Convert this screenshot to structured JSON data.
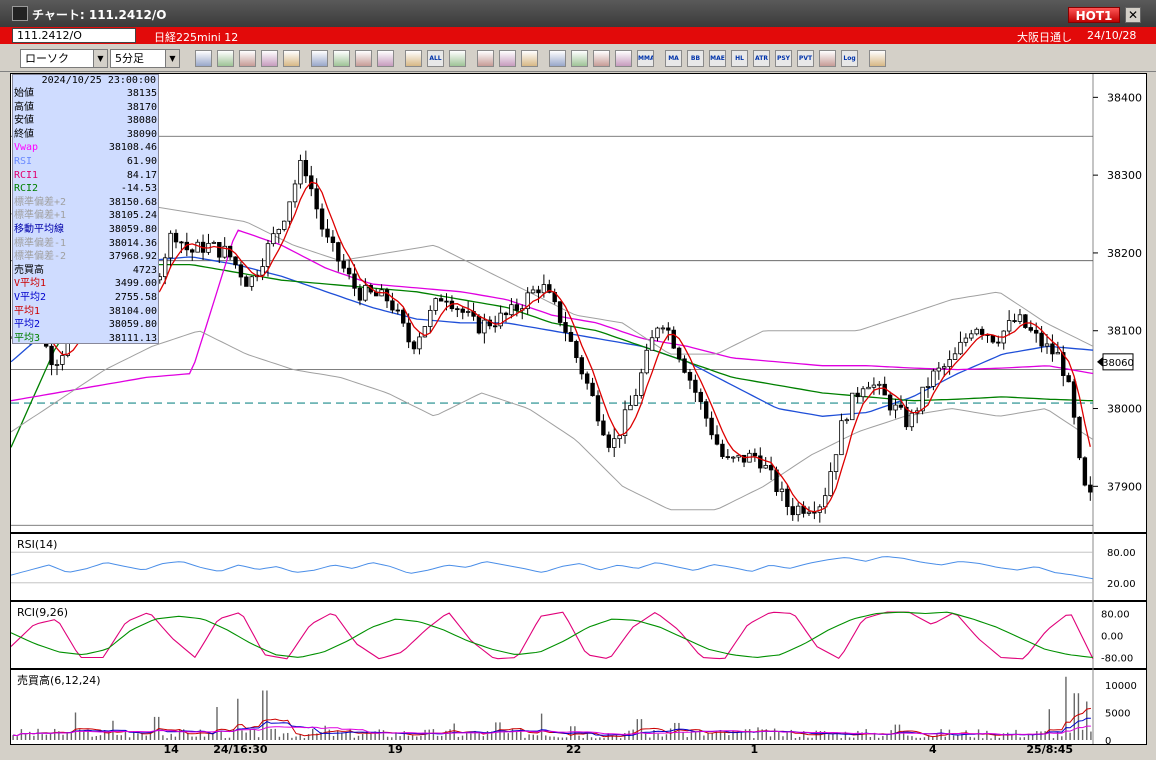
{
  "window": {
    "title": "チャート: 111.2412/O",
    "hot_badge": "HOT1",
    "close_glyph": "✕"
  },
  "infobar": {
    "symbol": "111.2412/O",
    "instrument": "日経225mini 12",
    "session": "大阪日通し",
    "date": "24/10/28"
  },
  "toolbar": {
    "chart_type": "ローソク",
    "interval": "5分足",
    "icons": [
      "zoom-icon",
      "grid-icon",
      "line-tool-icon",
      "trend-tool-icon",
      "cursor-icon",
      "arrow-icon",
      "print-icon",
      "trash-icon",
      "bar-compress-icon",
      "bar-expand-icon",
      "all-icon",
      "settings-icon",
      "pen-icon",
      "color-icon",
      "mouse-icon",
      "search-chart-icon",
      "window-icon",
      "signal-icon",
      "misc-icon",
      "mma-icon",
      "ma-icon",
      "bb-icon",
      "mae-icon",
      "hl-icon",
      "atr-icon",
      "psy-icon",
      "pvt-icon",
      "box-icon",
      "log-icon",
      "export-icon"
    ],
    "icon_labels": {
      "all-icon": "ALL",
      "mma-icon": "MMA",
      "ma-icon": "MA",
      "bb-icon": "BB",
      "mae-icon": "MAE",
      "hl-icon": "HL",
      "atr-icon": "ATR",
      "psy-icon": "PSY",
      "pvt-icon": "PVT",
      "log-icon": "Log"
    }
  },
  "infobox": {
    "datetime": "2024/10/25 23:00:00",
    "rows": [
      {
        "label": "始値",
        "value": "38135",
        "color": "#000000"
      },
      {
        "label": "高値",
        "value": "38170",
        "color": "#000000"
      },
      {
        "label": "安値",
        "value": "38080",
        "color": "#000000"
      },
      {
        "label": "終値",
        "value": "38090",
        "color": "#000000"
      },
      {
        "label": "Vwap",
        "value": "38108.46",
        "color": "#ff00ff"
      },
      {
        "label": "RSI",
        "value": "61.90",
        "color": "#6a8aff"
      },
      {
        "label": "RCI1",
        "value": "84.17",
        "color": "#e00070"
      },
      {
        "label": "RCI2",
        "value": "-14.53",
        "color": "#008000"
      },
      {
        "label": "標準偏差+2",
        "value": "38150.68",
        "color": "#a0a0a0"
      },
      {
        "label": "標準偏差+1",
        "value": "38105.24",
        "color": "#a0a0a0"
      },
      {
        "label": "移動平均線",
        "value": "38059.80",
        "color": "#0000aa"
      },
      {
        "label": "標準偏差-1",
        "value": "38014.36",
        "color": "#a0a0a0"
      },
      {
        "label": "標準偏差-2",
        "value": "37968.92",
        "color": "#a0a0a0"
      },
      {
        "label": "売買高",
        "value": "4723",
        "color": "#000000"
      },
      {
        "label": "V平均1",
        "value": "3499.00",
        "color": "#cc0000"
      },
      {
        "label": "V平均2",
        "value": "2755.58",
        "color": "#0000cc"
      },
      {
        "label": "平均1",
        "value": "38104.00",
        "color": "#cc0000"
      },
      {
        "label": "平均2",
        "value": "38059.80",
        "color": "#0000cc"
      },
      {
        "label": "平均3",
        "value": "38111.13",
        "color": "#008000"
      }
    ]
  },
  "chart_data": [
    {
      "type": "candlestick",
      "panel": "price",
      "y_ticks": [
        37900,
        38000,
        38100,
        38200,
        38300,
        38400
      ],
      "ylim": [
        37840,
        38430
      ],
      "current_price": "38060",
      "horizontal_lines": [
        38350,
        38190,
        38050,
        37850
      ],
      "dashed_line": 38007,
      "anchors": [
        {
          "x": 0.0,
          "p": 38090
        },
        {
          "x": 0.02,
          "p": 38110
        },
        {
          "x": 0.04,
          "p": 38060
        },
        {
          "x": 0.06,
          "p": 38100
        },
        {
          "x": 0.08,
          "p": 38120
        },
        {
          "x": 0.1,
          "p": 38210
        },
        {
          "x": 0.115,
          "p": 38130
        },
        {
          "x": 0.13,
          "p": 38150
        },
        {
          "x": 0.15,
          "p": 38230
        },
        {
          "x": 0.165,
          "p": 38200
        },
        {
          "x": 0.18,
          "p": 38210
        },
        {
          "x": 0.2,
          "p": 38200
        },
        {
          "x": 0.22,
          "p": 38160
        },
        {
          "x": 0.25,
          "p": 38240
        },
        {
          "x": 0.27,
          "p": 38320
        },
        {
          "x": 0.29,
          "p": 38220
        },
        {
          "x": 0.32,
          "p": 38150
        },
        {
          "x": 0.35,
          "p": 38140
        },
        {
          "x": 0.37,
          "p": 38080
        },
        {
          "x": 0.4,
          "p": 38150
        },
        {
          "x": 0.43,
          "p": 38105
        },
        {
          "x": 0.46,
          "p": 38120
        },
        {
          "x": 0.49,
          "p": 38160
        },
        {
          "x": 0.51,
          "p": 38110
        },
        {
          "x": 0.53,
          "p": 38040
        },
        {
          "x": 0.555,
          "p": 37950
        },
        {
          "x": 0.575,
          "p": 38010
        },
        {
          "x": 0.6,
          "p": 38120
        },
        {
          "x": 0.615,
          "p": 38080
        },
        {
          "x": 0.63,
          "p": 38030
        },
        {
          "x": 0.66,
          "p": 37930
        },
        {
          "x": 0.69,
          "p": 37940
        },
        {
          "x": 0.72,
          "p": 37870
        },
        {
          "x": 0.75,
          "p": 37880
        },
        {
          "x": 0.77,
          "p": 37990
        },
        {
          "x": 0.79,
          "p": 38040
        },
        {
          "x": 0.81,
          "p": 38010
        },
        {
          "x": 0.83,
          "p": 37980
        },
        {
          "x": 0.85,
          "p": 38040
        },
        {
          "x": 0.87,
          "p": 38060
        },
        {
          "x": 0.89,
          "p": 38110
        },
        {
          "x": 0.91,
          "p": 38090
        },
        {
          "x": 0.93,
          "p": 38115
        },
        {
          "x": 0.955,
          "p": 38080
        },
        {
          "x": 0.97,
          "p": 38065
        },
        {
          "x": 0.98,
          "p": 38010
        },
        {
          "x": 0.99,
          "p": 37900
        },
        {
          "x": 1.0,
          "p": 37880
        }
      ],
      "indicators": [
        {
          "name": "移動平均線",
          "color": "#1f4fd8",
          "values": [
            38060,
            38110,
            38160,
            38190,
            38195,
            38185,
            38170,
            38150,
            38130,
            38115,
            38110,
            38110,
            38100,
            38090,
            38080,
            38060,
            38030,
            38000,
            37990,
            37995,
            38015,
            38045,
            38070,
            38080,
            38075
          ]
        },
        {
          "name": "平均3",
          "color": "#008000",
          "values": [
            37950,
            38080,
            38150,
            38185,
            38185,
            38175,
            38165,
            38160,
            38155,
            38150,
            38140,
            38130,
            38110,
            38100,
            38080,
            38060,
            38040,
            38030,
            38020,
            38015,
            38010,
            38012,
            38015,
            38012,
            38010
          ]
        },
        {
          "name": "Vwap",
          "color": "#e000e0",
          "values": [
            38010,
            38020,
            38030,
            38040,
            38045,
            38230,
            38210,
            38180,
            38160,
            38155,
            38150,
            38140,
            38120,
            38110,
            38090,
            38080,
            38065,
            38060,
            38055,
            38055,
            38052,
            38050,
            38052,
            38055,
            38045
          ]
        },
        {
          "name": "標準偏差+2",
          "color": "#a0a0a0",
          "values": [
            38250,
            38270,
            38280,
            38260,
            38250,
            38240,
            38210,
            38190,
            38200,
            38210,
            38180,
            38150,
            38120,
            38110,
            38070,
            38070,
            38100,
            38100,
            38100,
            38120,
            38140,
            38150,
            38110,
            38080
          ]
        },
        {
          "name": "標準偏差-2",
          "color": "#a0a0a0",
          "values": [
            37970,
            38010,
            38050,
            38080,
            38100,
            38070,
            38050,
            38040,
            38020,
            37990,
            38020,
            38000,
            37960,
            37900,
            37870,
            37870,
            37900,
            37940,
            37970,
            37990,
            38000,
            37990,
            38000,
            37960
          ]
        }
      ]
    },
    {
      "type": "line",
      "panel": "rsi",
      "title": "RSI(14)",
      "y_ticks": [
        80,
        20
      ],
      "tick_labels": [
        "80.00",
        "20.00"
      ],
      "ylim": [
        0,
        100
      ],
      "series": [
        {
          "name": "RSI",
          "color": "#4a8ee8",
          "values": [
            35,
            45,
            55,
            40,
            48,
            60,
            52,
            45,
            58,
            62,
            50,
            42,
            55,
            46,
            52,
            40,
            45,
            55,
            48,
            60,
            52,
            38,
            45,
            55,
            50,
            62,
            55,
            48,
            40,
            52,
            58,
            45,
            55,
            48,
            60,
            52,
            44,
            56,
            50,
            42,
            55,
            48,
            58,
            65,
            70,
            62,
            72,
            68,
            60,
            55,
            62,
            58,
            50,
            45,
            52,
            40,
            35,
            28
          ]
        }
      ]
    },
    {
      "type": "line",
      "panel": "rci",
      "title": "RCI(9,26)",
      "y_ticks": [
        80,
        0,
        -80
      ],
      "tick_labels": [
        "80.00",
        "0.00",
        "-80.00"
      ],
      "ylim": [
        -100,
        100
      ],
      "series": [
        {
          "name": "RCI1",
          "color": "#e0007a",
          "values": [
            -40,
            40,
            60,
            -80,
            -80,
            50,
            85,
            -10,
            -80,
            60,
            85,
            -70,
            -85,
            40,
            85,
            -30,
            -85,
            -60,
            20,
            85,
            -20,
            -85,
            -80,
            70,
            85,
            -70,
            -85,
            30,
            85,
            20,
            -80,
            -85,
            40,
            85,
            80,
            -40,
            -85,
            60,
            85,
            85,
            40,
            85,
            -10,
            -80,
            -85,
            20,
            85,
            -85
          ]
        },
        {
          "name": "RCI2",
          "color": "#009000",
          "values": [
            10,
            -30,
            -60,
            -70,
            -50,
            20,
            60,
            70,
            60,
            20,
            -30,
            -70,
            -80,
            -60,
            -20,
            30,
            60,
            50,
            20,
            -20,
            -50,
            -70,
            -60,
            -20,
            30,
            60,
            55,
            30,
            -10,
            -50,
            -70,
            -80,
            -70,
            -30,
            20,
            60,
            80,
            85,
            80,
            85,
            60,
            30,
            -10,
            -50,
            -70,
            -80
          ]
        }
      ]
    },
    {
      "type": "bar",
      "panel": "volume",
      "title": "売買高(6,12,24)",
      "y_ticks": [
        10000,
        5000,
        0
      ],
      "tick_labels": [
        "10000",
        "5000",
        "0"
      ],
      "ylim": [
        0,
        12000
      ],
      "spikes": [
        {
          "x": 0.06,
          "v": 5000
        },
        {
          "x": 0.095,
          "v": 3500
        },
        {
          "x": 0.135,
          "v": 4200
        },
        {
          "x": 0.19,
          "v": 6000
        },
        {
          "x": 0.21,
          "v": 7500
        },
        {
          "x": 0.235,
          "v": 9000
        },
        {
          "x": 0.29,
          "v": 2600
        },
        {
          "x": 0.41,
          "v": 3000
        },
        {
          "x": 0.45,
          "v": 3200
        },
        {
          "x": 0.49,
          "v": 4800
        },
        {
          "x": 0.52,
          "v": 2500
        },
        {
          "x": 0.58,
          "v": 3800
        },
        {
          "x": 0.615,
          "v": 3100
        },
        {
          "x": 0.69,
          "v": 2300
        },
        {
          "x": 0.82,
          "v": 2800
        },
        {
          "x": 0.96,
          "v": 5600
        },
        {
          "x": 0.975,
          "v": 11500
        },
        {
          "x": 0.985,
          "v": 8500
        },
        {
          "x": 0.995,
          "v": 7000
        }
      ]
    }
  ],
  "x_axis": {
    "ticks": [
      {
        "label": "14",
        "pos": 0.148
      },
      {
        "label": "24/16:30",
        "pos": 0.212
      },
      {
        "label": "19",
        "pos": 0.355
      },
      {
        "label": "22",
        "pos": 0.52
      },
      {
        "label": "1",
        "pos": 0.687
      },
      {
        "label": "4",
        "pos": 0.852
      },
      {
        "label": "25/8:45",
        "pos": 0.96
      }
    ]
  }
}
